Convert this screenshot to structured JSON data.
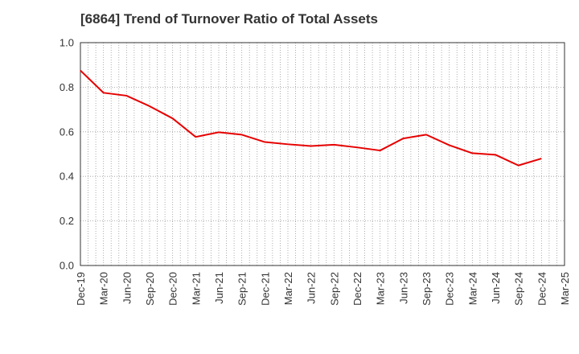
{
  "chart_data": {
    "type": "line",
    "title": "[6864]  Trend of Turnover Ratio of Total Assets",
    "xlabel": "",
    "ylabel": "",
    "ylim": [
      0.0,
      1.0
    ],
    "yticks": [
      "0.0",
      "0.2",
      "0.4",
      "0.6",
      "0.8",
      "1.0"
    ],
    "x_tick_labels": [
      "Dec-19",
      "Mar-20",
      "Jun-20",
      "Sep-20",
      "Dec-20",
      "Mar-21",
      "Jun-21",
      "Sep-21",
      "Dec-21",
      "Mar-22",
      "Jun-22",
      "Sep-22",
      "Dec-22",
      "Mar-23",
      "Jun-23",
      "Sep-23",
      "Dec-23",
      "Mar-24",
      "Jun-24",
      "Sep-24",
      "Dec-24",
      "Mar-25"
    ],
    "grid": true,
    "legend": "none",
    "series": [
      {
        "color": "#e60000",
        "x": [
          "Dec-19",
          "Mar-20",
          "Jun-20",
          "Sep-20",
          "Dec-20",
          "Mar-21",
          "Jun-21",
          "Sep-21",
          "Dec-21",
          "Mar-22",
          "Jun-22",
          "Sep-22",
          "Dec-22",
          "Mar-23",
          "Jun-23",
          "Sep-23",
          "Dec-23",
          "Mar-24",
          "Jun-24",
          "Sep-24",
          "Dec-24"
        ],
        "values": [
          0.875,
          0.775,
          0.762,
          0.715,
          0.66,
          0.577,
          0.598,
          0.587,
          0.554,
          0.544,
          0.536,
          0.542,
          0.53,
          0.516,
          0.57,
          0.587,
          0.54,
          0.504,
          0.497,
          0.449,
          0.48
        ]
      }
    ]
  }
}
